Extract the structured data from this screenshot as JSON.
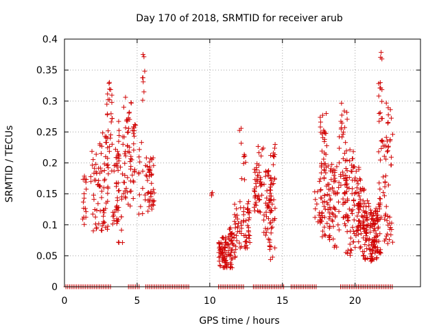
{
  "chart_data": {
    "type": "scatter",
    "title": "Day 170 of 2018, SRMTID for receiver arub",
    "xlabel": "GPS time / hours",
    "ylabel": "SRMTID / TECUs",
    "xlim": [
      0,
      24.5
    ],
    "ylim": [
      0,
      0.4
    ],
    "x_ticks": [
      0,
      5,
      10,
      15,
      20
    ],
    "x_tick_labels": [
      "0",
      "5",
      "10",
      "15",
      "20"
    ],
    "y_ticks": [
      0,
      0.05,
      0.1,
      0.15,
      0.2,
      0.25,
      0.3,
      0.35,
      0.4
    ],
    "y_tick_labels": [
      "0",
      "0.05",
      "0.1",
      "0.15",
      "0.2",
      "0.25",
      "0.3",
      "0.35",
      "0.4"
    ],
    "grid": true,
    "marker": "plus",
    "marker_color": "#d00000",
    "zero_line_x_ranges": [
      [
        0.1,
        3.2
      ],
      [
        4.4,
        5.2
      ],
      [
        5.6,
        8.6
      ],
      [
        10.6,
        12.4
      ],
      [
        13.0,
        15.2
      ],
      [
        15.6,
        17.4
      ],
      [
        19.0,
        22.6
      ]
    ],
    "clusters": [
      {
        "x": [
          1.2,
          1.5
        ],
        "y": [
          0.1,
          0.19
        ],
        "n": 16
      },
      {
        "x": [
          1.8,
          2.4
        ],
        "y": [
          0.09,
          0.22
        ],
        "n": 30
      },
      {
        "x": [
          2.4,
          3.0
        ],
        "y": [
          0.09,
          0.25
        ],
        "n": 45
      },
      {
        "x": [
          2.9,
          3.3
        ],
        "y": [
          0.17,
          0.33
        ],
        "n": 28
      },
      {
        "x": [
          3.3,
          3.8
        ],
        "y": [
          0.1,
          0.27
        ],
        "n": 35
      },
      {
        "x": [
          3.6,
          4.0
        ],
        "y": [
          0.07,
          0.2
        ],
        "n": 20
      },
      {
        "x": [
          4.0,
          4.6
        ],
        "y": [
          0.12,
          0.31
        ],
        "n": 40
      },
      {
        "x": [
          4.4,
          4.9
        ],
        "y": [
          0.14,
          0.27
        ],
        "n": 25
      },
      {
        "x": [
          5.1,
          5.5
        ],
        "y": [
          0.09,
          0.24
        ],
        "n": 12
      },
      {
        "x": [
          5.3,
          5.7
        ],
        "y": [
          0.29,
          0.38
        ],
        "n": 8
      },
      {
        "x": [
          5.5,
          6.2
        ],
        "y": [
          0.12,
          0.21
        ],
        "n": 45
      },
      {
        "x": [
          10.1,
          10.2
        ],
        "y": [
          0.14,
          0.17
        ],
        "n": 3
      },
      {
        "x": [
          10.6,
          11.2
        ],
        "y": [
          0.03,
          0.08
        ],
        "n": 60
      },
      {
        "x": [
          11.2,
          11.8
        ],
        "y": [
          0.03,
          0.1
        ],
        "n": 45
      },
      {
        "x": [
          11.7,
          12.3
        ],
        "y": [
          0.06,
          0.14
        ],
        "n": 25
      },
      {
        "x": [
          12.0,
          12.5
        ],
        "y": [
          0.17,
          0.26
        ],
        "n": 10
      },
      {
        "x": [
          12.3,
          12.8
        ],
        "y": [
          0.06,
          0.15
        ],
        "n": 35
      },
      {
        "x": [
          13.0,
          13.6
        ],
        "y": [
          0.12,
          0.2
        ],
        "n": 40
      },
      {
        "x": [
          13.3,
          13.7
        ],
        "y": [
          0.19,
          0.23
        ],
        "n": 6
      },
      {
        "x": [
          13.7,
          14.3
        ],
        "y": [
          0.06,
          0.19
        ],
        "n": 55
      },
      {
        "x": [
          14.1,
          14.5
        ],
        "y": [
          0.04,
          0.23
        ],
        "n": 25
      },
      {
        "x": [
          17.2,
          17.7
        ],
        "y": [
          0.1,
          0.18
        ],
        "n": 20
      },
      {
        "x": [
          17.6,
          18.1
        ],
        "y": [
          0.18,
          0.28
        ],
        "n": 28
      },
      {
        "x": [
          17.7,
          18.3
        ],
        "y": [
          0.07,
          0.2
        ],
        "n": 35
      },
      {
        "x": [
          18.2,
          18.9
        ],
        "y": [
          0.06,
          0.2
        ],
        "n": 50
      },
      {
        "x": [
          18.9,
          19.5
        ],
        "y": [
          0.1,
          0.31
        ],
        "n": 40
      },
      {
        "x": [
          19.3,
          19.9
        ],
        "y": [
          0.05,
          0.23
        ],
        "n": 50
      },
      {
        "x": [
          19.8,
          20.4
        ],
        "y": [
          0.05,
          0.2
        ],
        "n": 45
      },
      {
        "x": [
          20.2,
          20.7
        ],
        "y": [
          0.08,
          0.16
        ],
        "n": 30
      },
      {
        "x": [
          20.5,
          21.0
        ],
        "y": [
          0.04,
          0.14
        ],
        "n": 45
      },
      {
        "x": [
          21.0,
          21.5
        ],
        "y": [
          0.04,
          0.13
        ],
        "n": 55
      },
      {
        "x": [
          21.3,
          21.8
        ],
        "y": [
          0.05,
          0.14
        ],
        "n": 40
      },
      {
        "x": [
          21.6,
          22.0
        ],
        "y": [
          0.14,
          0.33
        ],
        "n": 25
      },
      {
        "x": [
          21.7,
          21.9
        ],
        "y": [
          0.36,
          0.38
        ],
        "n": 3
      },
      {
        "x": [
          22.0,
          22.6
        ],
        "y": [
          0.06,
          0.3
        ],
        "n": 50
      }
    ]
  }
}
